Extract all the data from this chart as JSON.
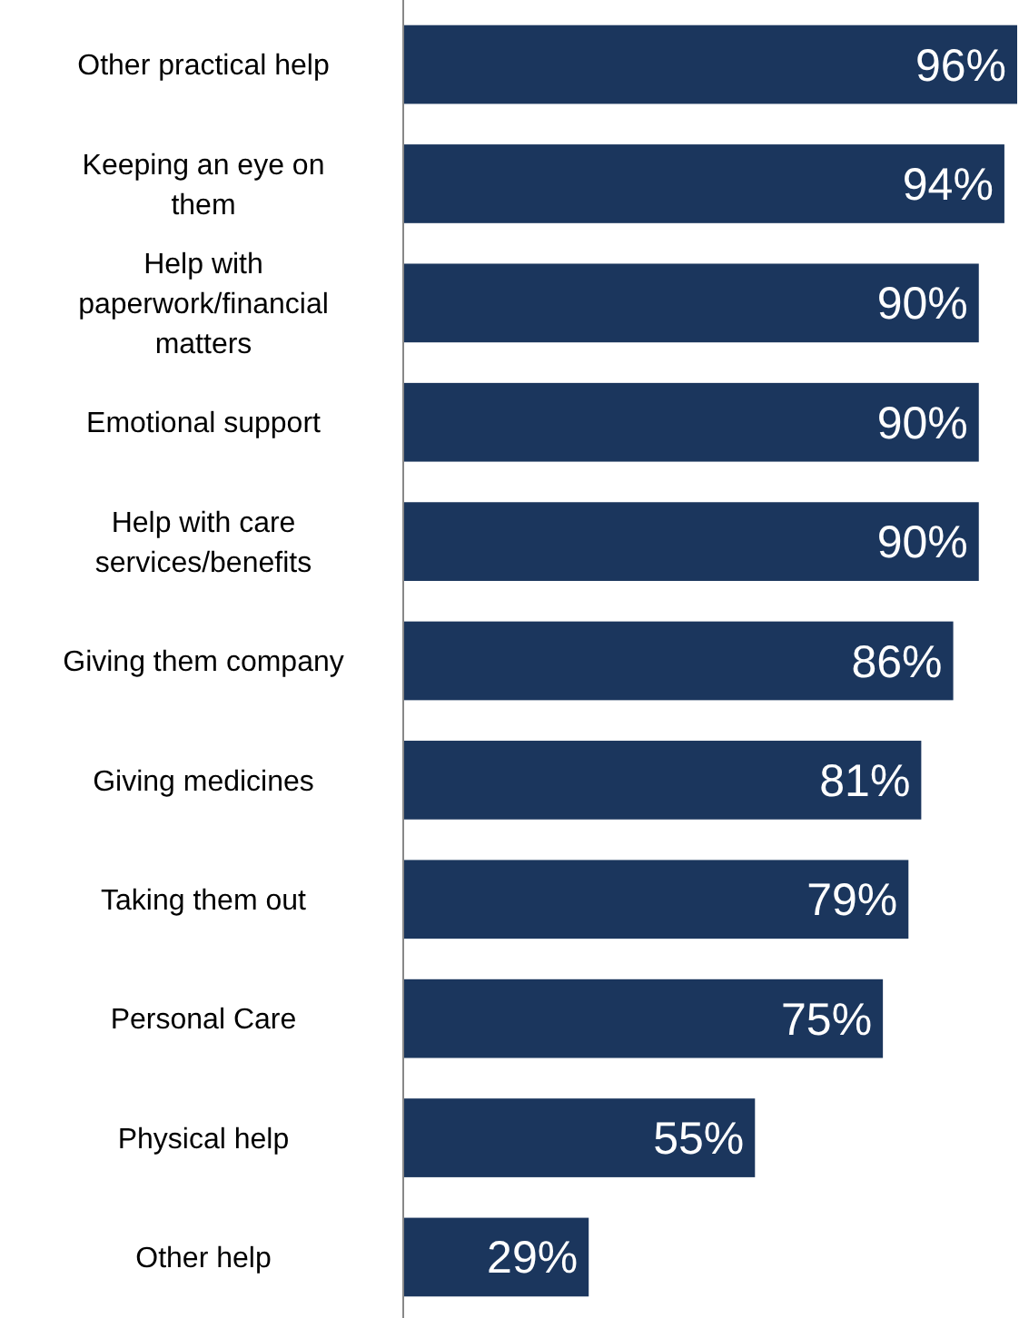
{
  "chart_data": {
    "type": "bar",
    "orientation": "horizontal",
    "categories": [
      "Other practical help",
      "Keeping an eye on them",
      "Help with paperwork/financial matters",
      "Emotional support",
      "Help with care services/benefits",
      "Giving them company",
      "Giving medicines",
      "Taking them out",
      "Personal Care",
      "Physical help",
      "Other help"
    ],
    "values": [
      96,
      94,
      90,
      90,
      90,
      86,
      81,
      79,
      75,
      55,
      29
    ],
    "value_labels": [
      "96%",
      "94%",
      "90%",
      "90%",
      "90%",
      "86%",
      "81%",
      "79%",
      "75%",
      "55%",
      "29%"
    ],
    "color": "#1b365d"
  }
}
